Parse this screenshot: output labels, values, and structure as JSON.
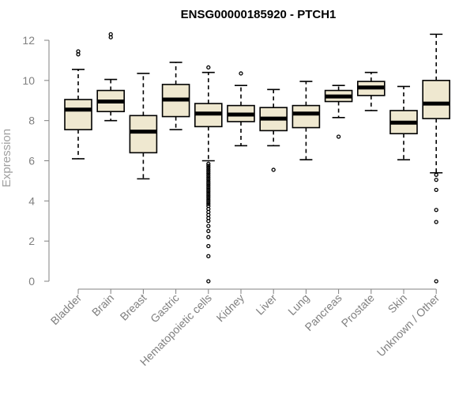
{
  "chart_data": {
    "type": "boxplot",
    "title": "ENSG00000185920 - PTCH1",
    "xlabel": "",
    "ylabel": "Expression",
    "ylim": [
      0,
      12
    ],
    "yticks": [
      0,
      2,
      4,
      6,
      8,
      10,
      12
    ],
    "grid": false,
    "colors": {
      "box_fill": "#efe8d0",
      "stroke": "#000000",
      "axis": "#808080"
    },
    "categories": [
      "Bladder",
      "Brain",
      "Breast",
      "Gastric",
      "Hematopoietic cells",
      "Kidney",
      "Liver",
      "Lung",
      "Pancreas",
      "Prostate",
      "Skin",
      "Unknown / Other"
    ],
    "boxes": [
      {
        "category": "Bladder",
        "whisker_low": 6.1,
        "q1": 7.55,
        "median": 8.55,
        "q3": 9.05,
        "whisker_high": 10.55,
        "outliers": [
          11.3,
          11.45
        ]
      },
      {
        "category": "Brain",
        "whisker_low": 8.0,
        "q1": 8.45,
        "median": 8.95,
        "q3": 9.5,
        "whisker_high": 10.05,
        "outliers": [
          12.15,
          12.3
        ]
      },
      {
        "category": "Breast",
        "whisker_low": 5.1,
        "q1": 6.4,
        "median": 7.45,
        "q3": 8.25,
        "whisker_high": 10.35,
        "outliers": []
      },
      {
        "category": "Gastric",
        "whisker_low": 7.55,
        "q1": 8.2,
        "median": 9.05,
        "q3": 9.8,
        "whisker_high": 10.9,
        "outliers": []
      },
      {
        "category": "Hematopoietic cells",
        "whisker_low": 6.0,
        "q1": 7.7,
        "median": 8.35,
        "q3": 8.85,
        "whisker_high": 10.4,
        "outliers": [
          10.65,
          5.85,
          5.75,
          5.65,
          5.55,
          5.45,
          5.35,
          5.25,
          5.15,
          5.05,
          4.95,
          4.85,
          4.75,
          4.65,
          4.55,
          4.45,
          4.35,
          4.25,
          4.15,
          4.05,
          3.95,
          3.85,
          3.75,
          3.6,
          3.45,
          3.3,
          3.15,
          3.0,
          2.75,
          2.5,
          2.2,
          1.75,
          1.25,
          0.0
        ]
      },
      {
        "category": "Kidney",
        "whisker_low": 6.75,
        "q1": 7.95,
        "median": 8.3,
        "q3": 8.75,
        "whisker_high": 9.75,
        "outliers": [
          10.35
        ]
      },
      {
        "category": "Liver",
        "whisker_low": 6.75,
        "q1": 7.5,
        "median": 8.1,
        "q3": 8.65,
        "whisker_high": 9.55,
        "outliers": [
          5.55
        ]
      },
      {
        "category": "Lung",
        "whisker_low": 6.05,
        "q1": 7.65,
        "median": 8.35,
        "q3": 8.75,
        "whisker_high": 9.95,
        "outliers": []
      },
      {
        "category": "Pancreas",
        "whisker_low": 8.15,
        "q1": 8.95,
        "median": 9.2,
        "q3": 9.5,
        "whisker_high": 9.75,
        "outliers": [
          7.2
        ]
      },
      {
        "category": "Prostate",
        "whisker_low": 8.5,
        "q1": 9.25,
        "median": 9.65,
        "q3": 9.95,
        "whisker_high": 10.4,
        "outliers": []
      },
      {
        "category": "Skin",
        "whisker_low": 6.05,
        "q1": 7.35,
        "median": 7.9,
        "q3": 8.5,
        "whisker_high": 9.7,
        "outliers": []
      },
      {
        "category": "Unknown / Other",
        "whisker_low": 5.4,
        "q1": 8.1,
        "median": 8.85,
        "q3": 10.0,
        "whisker_high": 12.3,
        "outliers": [
          5.3,
          5.05,
          4.55,
          3.55,
          2.95,
          0.0
        ]
      }
    ]
  }
}
